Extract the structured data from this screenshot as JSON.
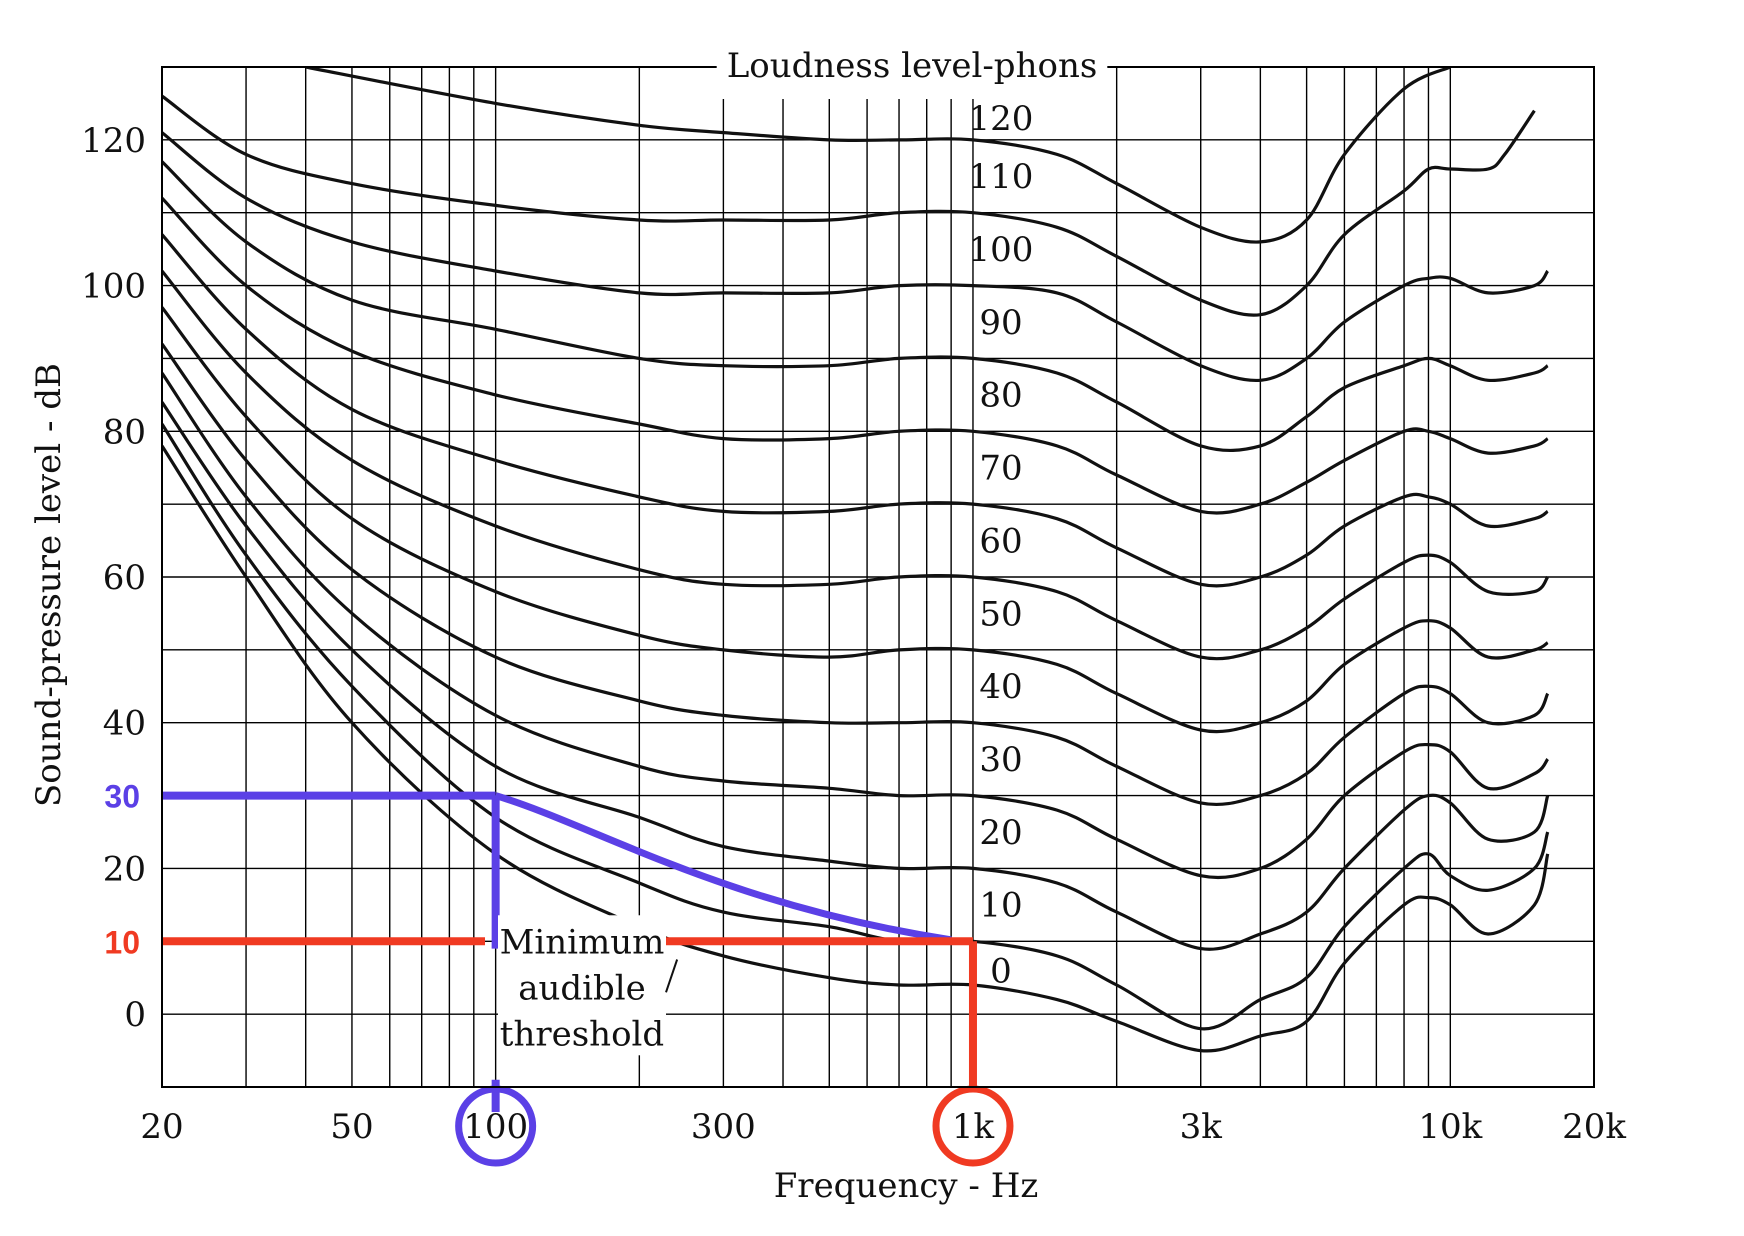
{
  "chart_data": {
    "type": "line",
    "title": "Loudness level-phons",
    "xlabel": "Frequency - Hz",
    "ylabel": "Sound-pressure level - dB",
    "xscale": "log",
    "xlim": [
      20,
      20000
    ],
    "ylim": [
      -10,
      130
    ],
    "xticks": [
      {
        "value": 20,
        "label": "20"
      },
      {
        "value": 50,
        "label": "50"
      },
      {
        "value": 100,
        "label": "100"
      },
      {
        "value": 300,
        "label": "300"
      },
      {
        "value": 1000,
        "label": "1k"
      },
      {
        "value": 3000,
        "label": "3k"
      },
      {
        "value": 10000,
        "label": "10k"
      },
      {
        "value": 20000,
        "label": "20k"
      }
    ],
    "yticks": [
      {
        "value": 0,
        "label": "0"
      },
      {
        "value": 20,
        "label": "20"
      },
      {
        "value": 40,
        "label": "40"
      },
      {
        "value": 60,
        "label": "60"
      },
      {
        "value": 80,
        "label": "80"
      },
      {
        "value": 100,
        "label": "100"
      },
      {
        "value": 120,
        "label": "120"
      }
    ],
    "grid": true,
    "threshold_label": "Minimum audible threshold",
    "threshold_lines": [
      "Minimum",
      "audible",
      "threshold"
    ],
    "series": [
      {
        "name": "0",
        "label": "0",
        "points": [
          [
            20,
            78
          ],
          [
            30,
            60
          ],
          [
            50,
            40
          ],
          [
            100,
            22
          ],
          [
            200,
            12
          ],
          [
            300,
            8
          ],
          [
            500,
            5
          ],
          [
            700,
            4
          ],
          [
            1000,
            4
          ],
          [
            1500,
            2
          ],
          [
            2000,
            -1
          ],
          [
            3000,
            -5
          ],
          [
            4000,
            -3
          ],
          [
            5000,
            -1
          ],
          [
            6000,
            7
          ],
          [
            8000,
            15
          ],
          [
            9000,
            16
          ],
          [
            10000,
            15
          ],
          [
            12000,
            11
          ],
          [
            15000,
            15
          ],
          [
            16000,
            22
          ]
        ]
      },
      {
        "name": "10",
        "label": "10",
        "points": [
          [
            20,
            81
          ],
          [
            30,
            63
          ],
          [
            50,
            45
          ],
          [
            100,
            27
          ],
          [
            200,
            18
          ],
          [
            300,
            14
          ],
          [
            500,
            12
          ],
          [
            700,
            10
          ],
          [
            1000,
            10
          ],
          [
            1500,
            8
          ],
          [
            2000,
            4
          ],
          [
            3000,
            -2
          ],
          [
            4000,
            2
          ],
          [
            5000,
            5
          ],
          [
            6000,
            12
          ],
          [
            8000,
            20
          ],
          [
            9000,
            22
          ],
          [
            10000,
            19
          ],
          [
            12000,
            17
          ],
          [
            15000,
            20
          ],
          [
            16000,
            25
          ]
        ]
      },
      {
        "name": "20",
        "label": "20",
        "points": [
          [
            20,
            84
          ],
          [
            30,
            67
          ],
          [
            50,
            50
          ],
          [
            100,
            34
          ],
          [
            200,
            27
          ],
          [
            300,
            23
          ],
          [
            500,
            21
          ],
          [
            700,
            20
          ],
          [
            1000,
            20
          ],
          [
            1500,
            18
          ],
          [
            2000,
            14
          ],
          [
            3000,
            9
          ],
          [
            4000,
            11
          ],
          [
            5000,
            14
          ],
          [
            6000,
            20
          ],
          [
            8000,
            28
          ],
          [
            9000,
            30
          ],
          [
            10000,
            29
          ],
          [
            12000,
            24
          ],
          [
            15000,
            25
          ],
          [
            16000,
            30
          ]
        ]
      },
      {
        "name": "30",
        "label": "30",
        "points": [
          [
            20,
            88
          ],
          [
            30,
            71
          ],
          [
            50,
            55
          ],
          [
            100,
            41
          ],
          [
            200,
            34
          ],
          [
            300,
            32
          ],
          [
            500,
            31
          ],
          [
            700,
            30
          ],
          [
            1000,
            30
          ],
          [
            1500,
            28
          ],
          [
            2000,
            24
          ],
          [
            3000,
            19
          ],
          [
            4000,
            20
          ],
          [
            5000,
            24
          ],
          [
            6000,
            30
          ],
          [
            8000,
            36
          ],
          [
            9000,
            37
          ],
          [
            10000,
            36
          ],
          [
            12000,
            31
          ],
          [
            15000,
            33
          ],
          [
            16000,
            35
          ]
        ]
      },
      {
        "name": "40",
        "label": "40",
        "points": [
          [
            20,
            92
          ],
          [
            30,
            76
          ],
          [
            50,
            61
          ],
          [
            100,
            49
          ],
          [
            200,
            43
          ],
          [
            300,
            41
          ],
          [
            500,
            40
          ],
          [
            700,
            40
          ],
          [
            1000,
            40
          ],
          [
            1500,
            38
          ],
          [
            2000,
            34
          ],
          [
            3000,
            29
          ],
          [
            4000,
            30
          ],
          [
            5000,
            33
          ],
          [
            6000,
            38
          ],
          [
            8000,
            44
          ],
          [
            9000,
            45
          ],
          [
            10000,
            44
          ],
          [
            12000,
            40
          ],
          [
            15000,
            41
          ],
          [
            16000,
            44
          ]
        ]
      },
      {
        "name": "50",
        "label": "50",
        "points": [
          [
            20,
            97
          ],
          [
            30,
            82
          ],
          [
            50,
            68
          ],
          [
            100,
            58
          ],
          [
            200,
            52
          ],
          [
            300,
            50
          ],
          [
            500,
            49
          ],
          [
            700,
            50
          ],
          [
            1000,
            50
          ],
          [
            1500,
            48
          ],
          [
            2000,
            44
          ],
          [
            3000,
            39
          ],
          [
            4000,
            40
          ],
          [
            5000,
            43
          ],
          [
            6000,
            48
          ],
          [
            8000,
            53
          ],
          [
            9000,
            54
          ],
          [
            10000,
            53
          ],
          [
            12000,
            49
          ],
          [
            15000,
            50
          ],
          [
            16000,
            51
          ]
        ]
      },
      {
        "name": "60",
        "label": "60",
        "points": [
          [
            20,
            102
          ],
          [
            30,
            88
          ],
          [
            50,
            76
          ],
          [
            100,
            67
          ],
          [
            200,
            61
          ],
          [
            300,
            59
          ],
          [
            500,
            59
          ],
          [
            700,
            60
          ],
          [
            1000,
            60
          ],
          [
            1500,
            58
          ],
          [
            2000,
            54
          ],
          [
            3000,
            49
          ],
          [
            4000,
            50
          ],
          [
            5000,
            53
          ],
          [
            6000,
            57
          ],
          [
            8000,
            62
          ],
          [
            9000,
            63
          ],
          [
            10000,
            62
          ],
          [
            12000,
            58
          ],
          [
            15000,
            58
          ],
          [
            16000,
            60
          ]
        ]
      },
      {
        "name": "70",
        "label": "70",
        "points": [
          [
            20,
            107
          ],
          [
            30,
            94
          ],
          [
            50,
            83
          ],
          [
            100,
            76
          ],
          [
            200,
            71
          ],
          [
            300,
            69
          ],
          [
            500,
            69
          ],
          [
            700,
            70
          ],
          [
            1000,
            70
          ],
          [
            1500,
            68
          ],
          [
            2000,
            64
          ],
          [
            3000,
            59
          ],
          [
            4000,
            60
          ],
          [
            5000,
            63
          ],
          [
            6000,
            67
          ],
          [
            8000,
            71
          ],
          [
            9000,
            71
          ],
          [
            10000,
            70
          ],
          [
            12000,
            67
          ],
          [
            15000,
            68
          ],
          [
            16000,
            69
          ]
        ]
      },
      {
        "name": "80",
        "label": "80",
        "points": [
          [
            20,
            112
          ],
          [
            30,
            100
          ],
          [
            50,
            91
          ],
          [
            100,
            85
          ],
          [
            200,
            81
          ],
          [
            300,
            79
          ],
          [
            500,
            79
          ],
          [
            700,
            80
          ],
          [
            1000,
            80
          ],
          [
            1500,
            78
          ],
          [
            2000,
            74
          ],
          [
            3000,
            69
          ],
          [
            4000,
            70
          ],
          [
            5000,
            73
          ],
          [
            6000,
            76
          ],
          [
            8000,
            80
          ],
          [
            9000,
            80
          ],
          [
            10000,
            79
          ],
          [
            12000,
            77
          ],
          [
            15000,
            78
          ],
          [
            16000,
            79
          ]
        ]
      },
      {
        "name": "90",
        "label": "90",
        "points": [
          [
            20,
            117
          ],
          [
            30,
            106
          ],
          [
            50,
            98
          ],
          [
            100,
            94
          ],
          [
            200,
            90
          ],
          [
            300,
            89
          ],
          [
            500,
            89
          ],
          [
            700,
            90
          ],
          [
            1000,
            90
          ],
          [
            1500,
            88
          ],
          [
            2000,
            84
          ],
          [
            3000,
            78
          ],
          [
            4000,
            78
          ],
          [
            5000,
            82
          ],
          [
            6000,
            86
          ],
          [
            8000,
            89
          ],
          [
            9000,
            90
          ],
          [
            10000,
            89
          ],
          [
            12000,
            87
          ],
          [
            15000,
            88
          ],
          [
            16000,
            89
          ]
        ]
      },
      {
        "name": "100",
        "label": "100",
        "points": [
          [
            20,
            121
          ],
          [
            30,
            112
          ],
          [
            50,
            106
          ],
          [
            100,
            102
          ],
          [
            200,
            99
          ],
          [
            300,
            99
          ],
          [
            500,
            99
          ],
          [
            700,
            100
          ],
          [
            1000,
            100
          ],
          [
            1500,
            99
          ],
          [
            2000,
            95
          ],
          [
            3000,
            89
          ],
          [
            4000,
            87
          ],
          [
            5000,
            90
          ],
          [
            6000,
            95
          ],
          [
            8000,
            100
          ],
          [
            9000,
            101
          ],
          [
            10000,
            101
          ],
          [
            12000,
            99
          ],
          [
            15000,
            100
          ],
          [
            16000,
            102
          ]
        ]
      },
      {
        "name": "110",
        "label": "110",
        "points": [
          [
            20,
            126
          ],
          [
            30,
            118
          ],
          [
            50,
            114
          ],
          [
            100,
            111
          ],
          [
            200,
            109
          ],
          [
            300,
            109
          ],
          [
            500,
            109
          ],
          [
            700,
            110
          ],
          [
            1000,
            110
          ],
          [
            1500,
            108
          ],
          [
            2000,
            104
          ],
          [
            3000,
            98
          ],
          [
            4000,
            96
          ],
          [
            5000,
            100
          ],
          [
            6000,
            107
          ],
          [
            8000,
            113
          ],
          [
            9000,
            116
          ],
          [
            10000,
            116
          ],
          [
            12000,
            116
          ],
          [
            13000,
            118
          ],
          [
            15000,
            124
          ]
        ]
      },
      {
        "name": "120",
        "label": "120",
        "points": [
          [
            40,
            130
          ],
          [
            100,
            125
          ],
          [
            200,
            122
          ],
          [
            300,
            121
          ],
          [
            500,
            120
          ],
          [
            700,
            120
          ],
          [
            1000,
            120
          ],
          [
            1500,
            118
          ],
          [
            2000,
            114
          ],
          [
            3000,
            108
          ],
          [
            4000,
            106
          ],
          [
            5000,
            109
          ],
          [
            6000,
            118
          ],
          [
            8000,
            127
          ],
          [
            10000,
            130
          ]
        ]
      }
    ],
    "annotations": [
      {
        "text": "30",
        "value": 30,
        "color": "#5b40e6",
        "frequency": 100,
        "frequency_label": "100"
      },
      {
        "text": "10",
        "value": 10,
        "color": "#f03a22",
        "frequency": 1000,
        "frequency_label": "1k"
      }
    ]
  }
}
